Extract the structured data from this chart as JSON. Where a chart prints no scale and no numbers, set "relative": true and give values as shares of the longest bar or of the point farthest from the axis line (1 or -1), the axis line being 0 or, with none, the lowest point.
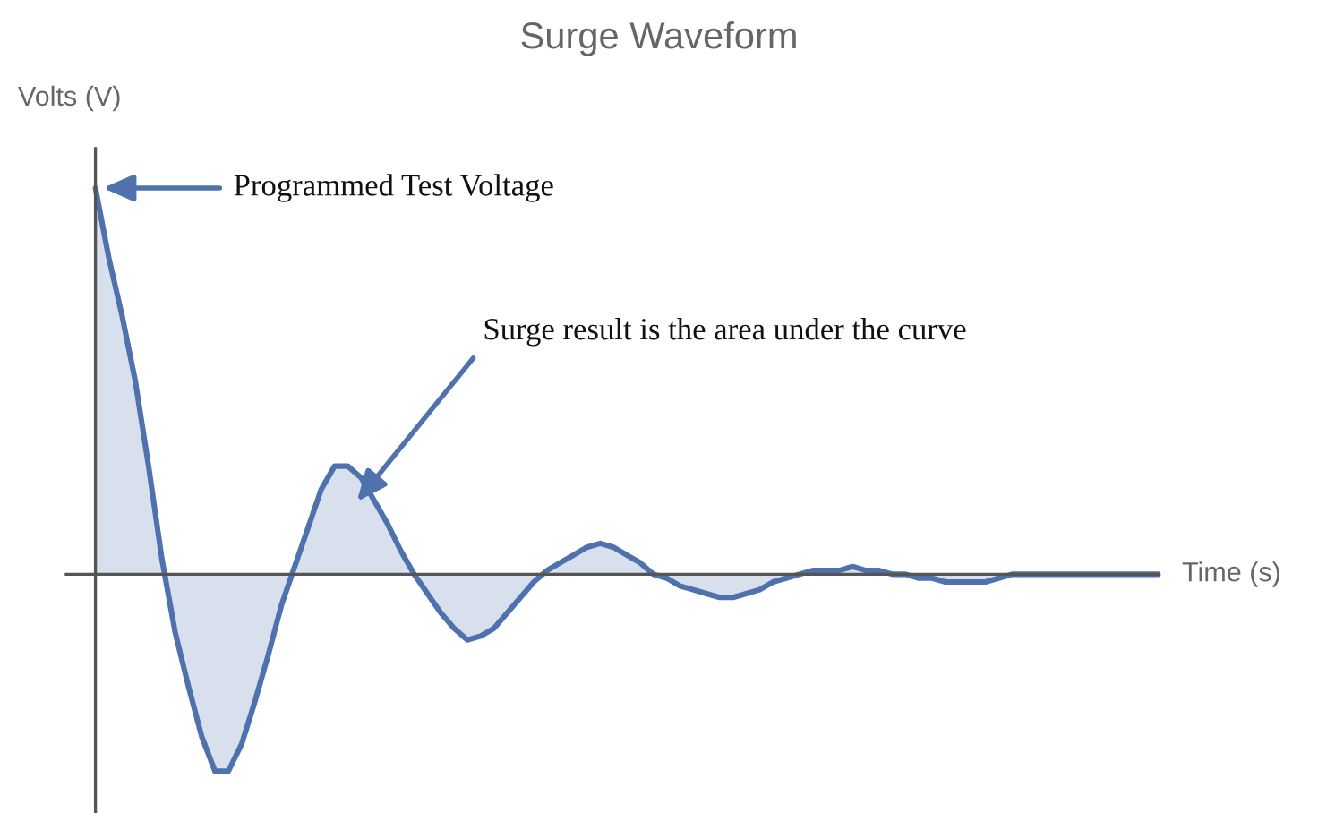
{
  "chart_data": {
    "type": "area",
    "title": "Surge Waveform",
    "xlabel": "Time (s)",
    "ylabel": "Volts (V)",
    "relative": true,
    "categories": [
      null,
      null,
      null,
      null,
      null,
      null,
      null,
      null,
      null,
      null,
      null,
      null,
      null,
      null,
      null,
      null,
      null,
      null,
      null,
      null,
      null,
      null,
      null,
      null,
      null,
      null,
      null,
      null,
      null,
      null,
      null,
      null,
      null,
      null,
      null,
      null,
      null,
      null,
      null,
      null,
      null,
      null,
      null,
      null,
      null,
      null,
      null,
      null,
      null,
      null,
      null,
      null,
      null,
      null,
      null,
      null,
      null,
      null,
      null,
      null,
      null,
      null,
      null,
      null,
      null,
      null,
      null,
      null,
      null,
      null,
      null,
      null,
      null,
      null,
      null,
      null,
      null,
      null,
      null,
      null,
      null
    ],
    "series": [
      {
        "color": "#4f72ae",
        "values": [
          1.0,
          0.82,
          0.67,
          0.5,
          0.28,
          0.04,
          -0.15,
          -0.29,
          -0.42,
          -0.51,
          -0.51,
          -0.44,
          -0.33,
          -0.21,
          -0.08,
          0.02,
          0.12,
          0.22,
          0.28,
          0.28,
          0.25,
          0.19,
          0.13,
          0.06,
          0,
          -0.05,
          -0.1,
          -0.14,
          -0.17,
          -0.16,
          -0.14,
          -0.1,
          -0.06,
          -0.02,
          0.01,
          0.03,
          0.05,
          0.07,
          0.08,
          0.07,
          0.05,
          0.03,
          0,
          -0.01,
          -0.03,
          -0.04,
          -0.05,
          -0.06,
          -0.06,
          -0.05,
          -0.04,
          -0.02,
          -0.01,
          0,
          0.01,
          0.01,
          0.01,
          0.02,
          0.01,
          0.01,
          0,
          0,
          -0.01,
          -0.01,
          -0.02,
          -0.02,
          -0.02,
          -0.02,
          -0.01,
          0,
          0,
          0,
          0,
          0,
          0,
          0,
          0,
          0,
          0,
          0,
          0
        ]
      }
    ],
    "annotations": [
      "Programmed Test Voltage",
      "Surge result is the area under the curve"
    ]
  }
}
